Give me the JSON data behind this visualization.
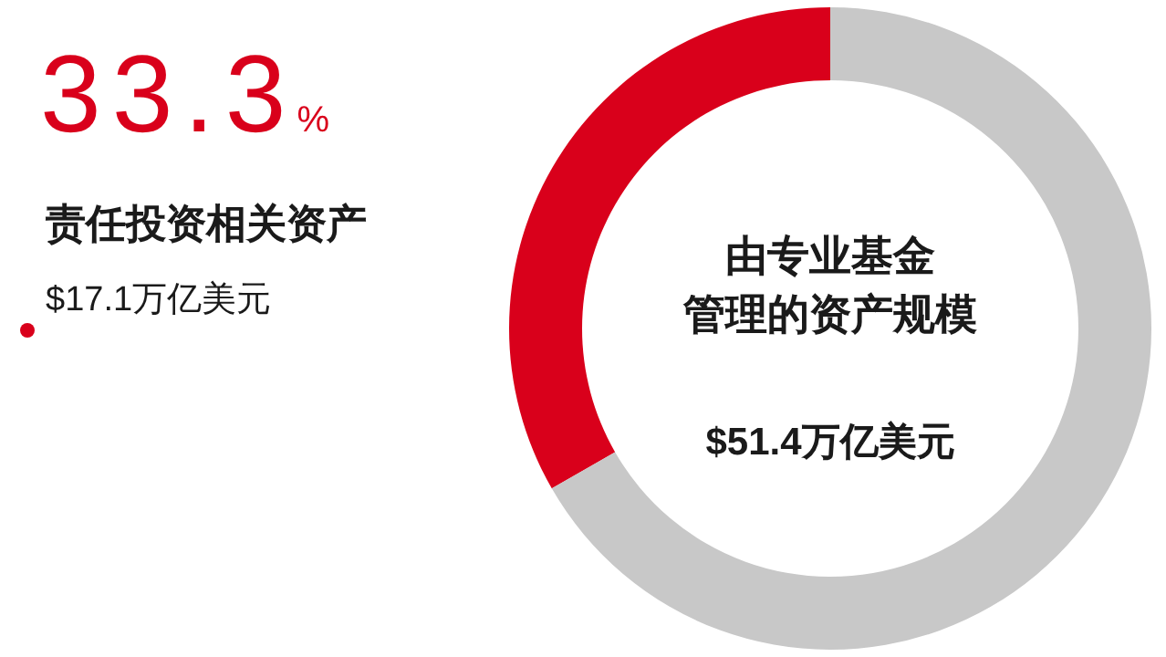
{
  "chart_data": {
    "type": "donut",
    "categories": [
      "责任投资相关资产",
      null
    ],
    "values": [
      33.3,
      66.7
    ],
    "colors": [
      "#d9001b",
      "#c8c8c8"
    ],
    "value_labels": [
      "33.3%",
      null
    ],
    "annotations": [
      "$17.1万亿美元",
      "由专业基金",
      "管理的资产规模",
      "$51.4万亿美元"
    ]
  }
}
